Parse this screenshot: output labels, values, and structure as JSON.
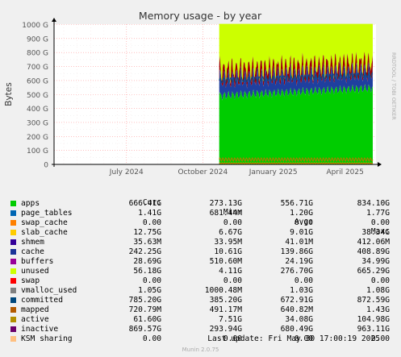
{
  "chart_data": {
    "type": "area",
    "title": "Memory usage - by year",
    "ylabel": "Bytes",
    "side_label": "RRDTOOL / TOBI OETIKER",
    "y_ticks": [
      "0",
      "100 G",
      "200 G",
      "300 G",
      "400 G",
      "500 G",
      "600 G",
      "700 G",
      "800 G",
      "900 G",
      "1000 G"
    ],
    "ylim": [
      0,
      1000
    ],
    "y_unit_scale": "G",
    "x_ticks": [
      {
        "label": "July 2024",
        "t": 0.225
      },
      {
        "label": "October 2024",
        "t": 0.462
      },
      {
        "label": "January 2025",
        "t": 0.681
      },
      {
        "label": "April 2025",
        "t": 0.904
      }
    ],
    "data_start": 0.513,
    "data_end": 0.99,
    "stack_top_value_G": 1005,
    "series": [
      {
        "name": "apps",
        "color": "#00cc00",
        "approx_level_G": 520
      },
      {
        "name": "slab_cache",
        "color": "#ff8000",
        "approx_level_G": 10
      },
      {
        "name": "cache",
        "color": "#1f3f9f",
        "approx_level_G": 650
      },
      {
        "name": "unused",
        "color": "#ccff00",
        "approx_level_G": 1000
      },
      {
        "name": "inactive",
        "color": "#9f0000",
        "approx_level_G": 700
      },
      {
        "name": "committed",
        "color": "#0a4f7f",
        "approx_level_G": 640
      },
      {
        "name": "active",
        "color": "#b07a00",
        "approx_level_G": 35
      }
    ]
  },
  "legend": {
    "headers": [
      "Cur:",
      "Min:",
      "Avg:",
      "Max:"
    ],
    "rows": [
      {
        "name": "apps",
        "color": "#00cc00",
        "cur": "666.41G",
        "min": "273.13G",
        "avg": "556.71G",
        "max": "834.10G"
      },
      {
        "name": "page_tables",
        "color": "#0066b3",
        "cur": "1.41G",
        "min": "681.44M",
        "avg": "1.20G",
        "max": "1.77G"
      },
      {
        "name": "swap_cache",
        "color": "#ff8000",
        "cur": "0.00",
        "min": "0.00",
        "avg": "0.00",
        "max": "0.00"
      },
      {
        "name": "slab_cache",
        "color": "#ffcc00",
        "cur": "12.75G",
        "min": "6.67G",
        "avg": "9.01G",
        "max": "38.34G"
      },
      {
        "name": "shmem",
        "color": "#330099",
        "cur": "35.63M",
        "min": "33.95M",
        "avg": "41.01M",
        "max": "412.06M"
      },
      {
        "name": "cache",
        "color": "#1a3399",
        "cur": "242.25G",
        "min": "10.61G",
        "avg": "139.86G",
        "max": "408.89G"
      },
      {
        "name": "buffers",
        "color": "#990099",
        "cur": "28.69G",
        "min": "510.60M",
        "avg": "24.19G",
        "max": "34.99G"
      },
      {
        "name": "unused",
        "color": "#ccff00",
        "cur": "56.18G",
        "min": "4.11G",
        "avg": "276.70G",
        "max": "665.29G"
      },
      {
        "name": "swap",
        "color": "#ff0000",
        "cur": "0.00",
        "min": "0.00",
        "avg": "0.00",
        "max": "0.00"
      },
      {
        "name": "vmalloc_used",
        "color": "#808080",
        "cur": "1.05G",
        "min": "1000.48M",
        "avg": "1.03G",
        "max": "1.08G"
      },
      {
        "name": "committed",
        "color": "#00487d",
        "cur": "785.20G",
        "min": "385.20G",
        "avg": "672.91G",
        "max": "872.59G"
      },
      {
        "name": "mapped",
        "color": "#b35a00",
        "cur": "720.79M",
        "min": "491.17M",
        "avg": "640.82M",
        "max": "1.43G"
      },
      {
        "name": "active",
        "color": "#b38f00",
        "cur": "61.60G",
        "min": "7.51G",
        "avg": "34.08G",
        "max": "104.98G"
      },
      {
        "name": "inactive",
        "color": "#6b006b",
        "cur": "869.57G",
        "min": "293.94G",
        "avg": "680.49G",
        "max": "963.11G"
      },
      {
        "name": "KSM sharing",
        "color": "#ffbf80",
        "cur": "0.00",
        "min": "0.00",
        "avg": "0.00",
        "max": "0.00"
      }
    ]
  },
  "last_update": "Last update: Fri May 30 17:00:19 2025",
  "footer": "Munin 2.0.75"
}
